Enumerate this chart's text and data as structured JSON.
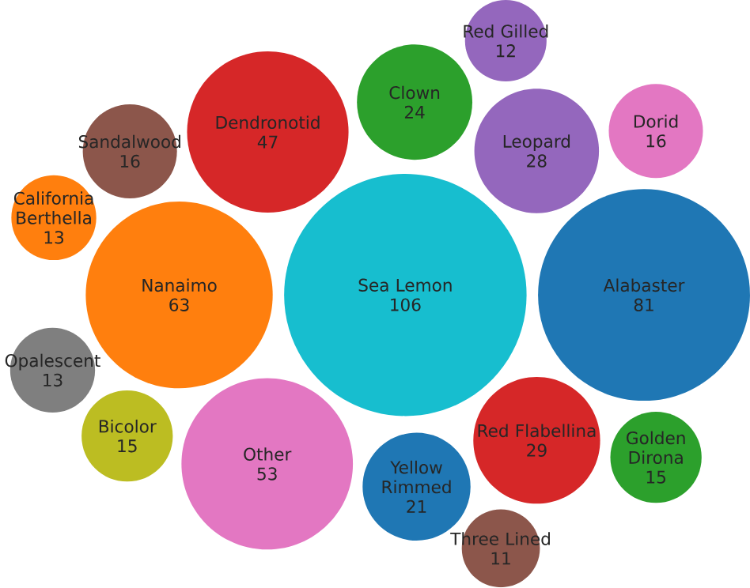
{
  "chart_data": {
    "type": "other",
    "categories": [
      "Sea Lemon",
      "Alabaster",
      "Nanaimo",
      "Other",
      "Dendronotid",
      "Red Flabellina",
      "Leopard",
      "Clown",
      "Yellow Rimmed",
      "Sandalwood",
      "Dorid",
      "Golden Dirona",
      "Bicolor",
      "California Berthella",
      "Opalescent",
      "Red Gilled",
      "Three Lined"
    ],
    "values": [
      106,
      81,
      63,
      53,
      47,
      29,
      28,
      24,
      21,
      16,
      16,
      15,
      15,
      13,
      13,
      12,
      11
    ],
    "colors": [
      "#17becf",
      "#1f77b4",
      "#ff7f0e",
      "#e377c2",
      "#d62728",
      "#d62728",
      "#9467bd",
      "#2ca02c",
      "#1f77b4",
      "#8c564b",
      "#e377c2",
      "#2ca02c",
      "#bcbd22",
      "#ff7f0e",
      "#7f7f7f",
      "#9467bd",
      "#8c564b"
    ],
    "data_labels": true
  }
}
